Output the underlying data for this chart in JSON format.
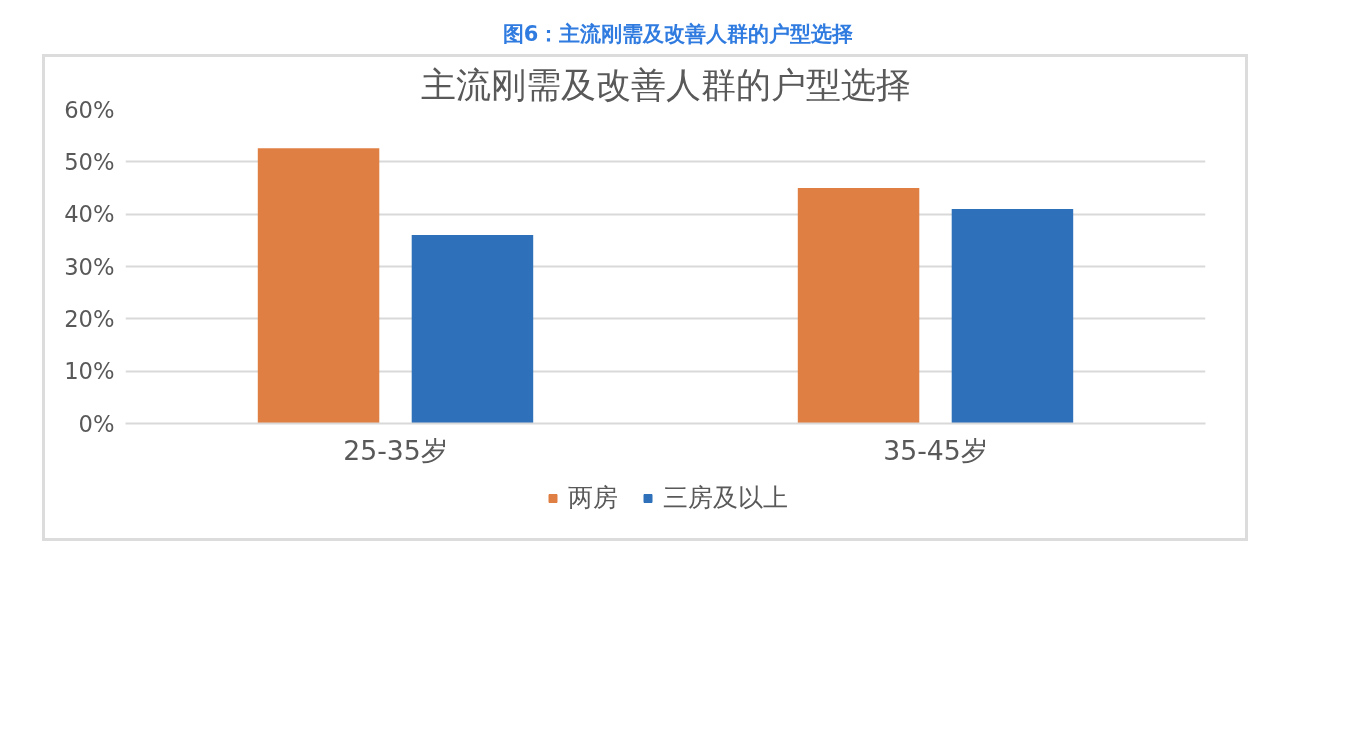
{
  "chart_data": {
    "type": "bar",
    "title": "图6：主流刚需及改善人群的户型选择",
    "subtitle": "主流刚需及改善人群的户型选择",
    "categories": [
      "25-35岁",
      "35-45岁"
    ],
    "series": [
      {
        "name": "两房",
        "color": "#e07f43",
        "values": [
          52.6,
          45
        ]
      },
      {
        "name": "三房及以上",
        "color": "#2e70b9",
        "values": [
          36,
          41
        ]
      }
    ],
    "ylim": [
      0,
      60
    ],
    "yticks": [
      {
        "value": 0,
        "label": "0%"
      },
      {
        "value": 10,
        "label": "10%"
      },
      {
        "value": 20,
        "label": "20%"
      },
      {
        "value": 30,
        "label": "30%"
      },
      {
        "value": 40,
        "label": "40%"
      },
      {
        "value": 50,
        "label": "50%"
      },
      {
        "value": 60,
        "label": "60%"
      }
    ],
    "grid": "y",
    "legend": "bottom"
  }
}
